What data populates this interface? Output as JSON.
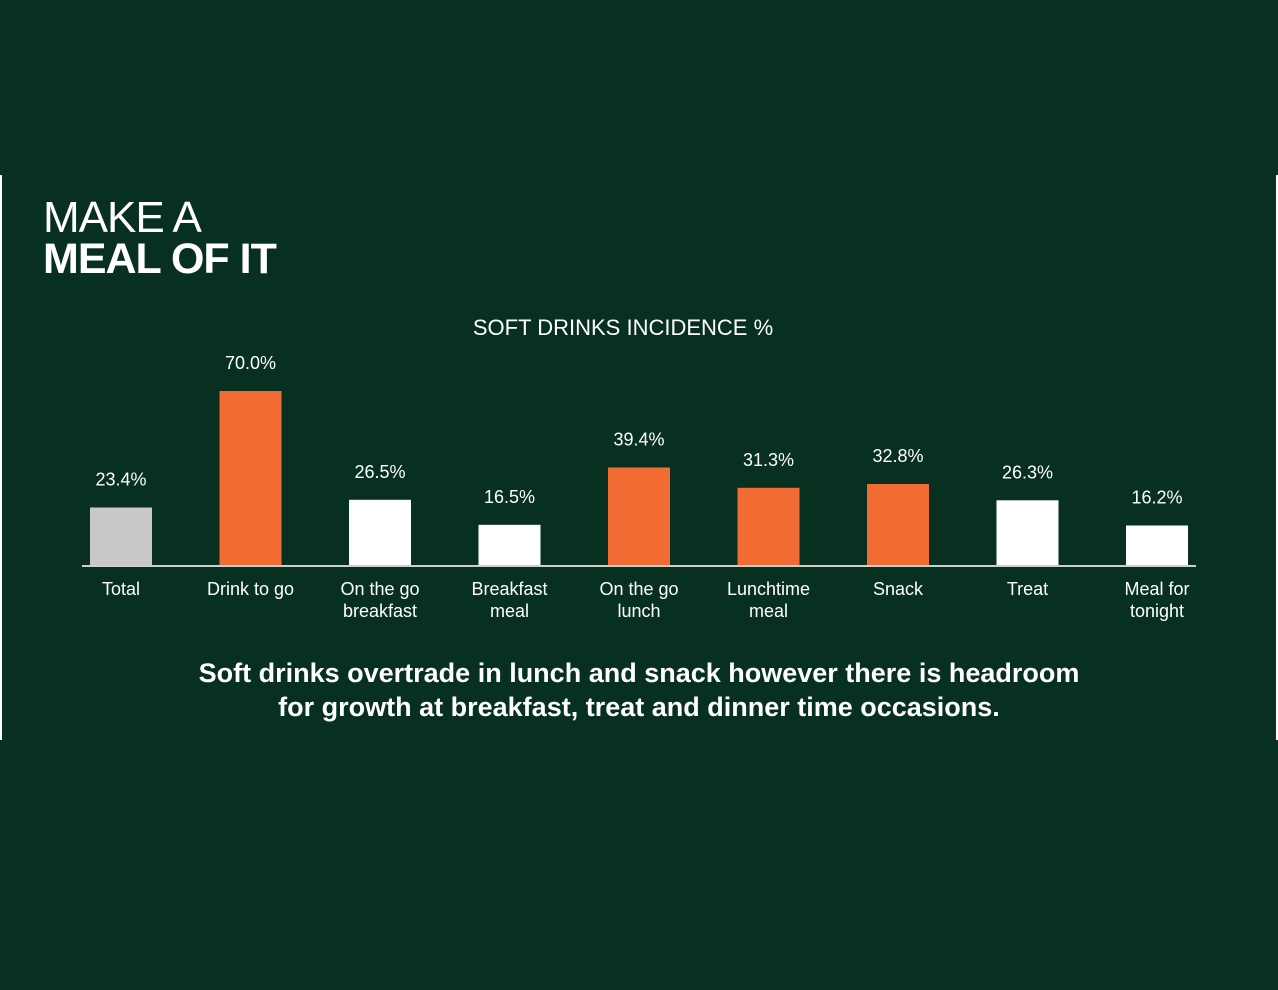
{
  "headline": {
    "line1": "MAKE A",
    "line2": "MEAL OF IT"
  },
  "caption": {
    "line1": "Soft drinks overtrade in lunch and snack however there is headroom",
    "line2": "for growth at breakfast, treat and dinner time occasions."
  },
  "colors": {
    "background": "#073020",
    "highlight": "#f16b32",
    "neutral": "#ffffff",
    "total": "#c8c8c8"
  },
  "chart_data": {
    "type": "bar",
    "title": "SOFT DRINKS INCIDENCE %",
    "xlabel": "",
    "ylabel": "",
    "ylim": [
      0,
      70
    ],
    "grid": false,
    "categories": [
      [
        "Total"
      ],
      [
        "Drink to go"
      ],
      [
        "On the go",
        "breakfast"
      ],
      [
        "Breakfast",
        "meal"
      ],
      [
        "On the go",
        "lunch"
      ],
      [
        "Lunchtime",
        "meal"
      ],
      [
        "Snack"
      ],
      [
        "Treat"
      ],
      [
        "Meal for",
        "tonight"
      ]
    ],
    "values": [
      23.4,
      70.0,
      26.5,
      16.5,
      39.4,
      31.3,
      32.8,
      26.3,
      16.2
    ],
    "value_labels": [
      "23.4%",
      "70.0%",
      "26.5%",
      "16.5%",
      "39.4%",
      "31.3%",
      "32.8%",
      "26.3%",
      "16.2%"
    ],
    "bar_colors": [
      "total",
      "highlight",
      "neutral",
      "neutral",
      "highlight",
      "highlight",
      "highlight",
      "neutral",
      "neutral"
    ]
  }
}
